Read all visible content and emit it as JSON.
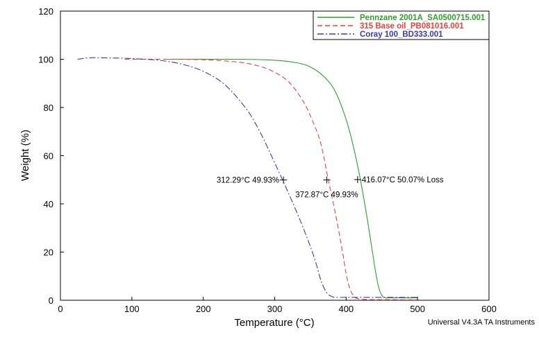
{
  "chart_data": {
    "type": "line",
    "xlabel": "Temperature (°C)",
    "ylabel": "Weight (%)",
    "xlim": [
      0,
      600
    ],
    "ylim": [
      0,
      120
    ],
    "x_ticks": [
      0,
      100,
      200,
      300,
      400,
      500,
      600
    ],
    "y_ticks": [
      0,
      20,
      40,
      60,
      80,
      100,
      120
    ],
    "grid": false,
    "legend_position": "top-right",
    "series": [
      {
        "name": "Pennzane 2001A_SA0500715.001",
        "color": "#2e9e2e",
        "dash": "solid",
        "x": [
          150,
          250,
          300,
          330,
          350,
          370,
          385,
          400,
          410,
          420,
          430,
          440,
          445,
          450,
          455,
          460,
          500
        ],
        "y": [
          100,
          100,
          99.6,
          98.6,
          96.8,
          92.5,
          86.5,
          75,
          64,
          50,
          33,
          14,
          6,
          2,
          1,
          1,
          1
        ]
      },
      {
        "name": "315 Base oil_PB081016.001",
        "color": "#e8403c",
        "dash": "dashed",
        "x": [
          90,
          150,
          200,
          250,
          280,
          300,
          320,
          340,
          355,
          365,
          375,
          385,
          395,
          400,
          405,
          410,
          415,
          430,
          500
        ],
        "y": [
          100,
          100,
          99.8,
          98.8,
          97,
          94.6,
          90.5,
          82.5,
          73,
          64.5,
          50,
          36,
          20,
          11,
          5,
          2,
          0.8,
          0.3,
          0.2
        ]
      },
      {
        "name": "Coray 100_BD333.001",
        "color": "#3a3aa8",
        "dash": "dashdot",
        "x": [
          24,
          40,
          60,
          100,
          140,
          170,
          200,
          230,
          260,
          280,
          300,
          320,
          340,
          355,
          365,
          372,
          378,
          385,
          400,
          500
        ],
        "y": [
          100,
          100.6,
          100.6,
          100.3,
          99.5,
          98,
          95,
          89.5,
          79.5,
          69.5,
          57,
          44,
          30,
          18,
          8,
          3.5,
          1.8,
          1.2,
          1.2,
          1.2
        ]
      }
    ],
    "annotations": [
      {
        "text": "312.29°C 49.93%",
        "x": 312.29,
        "y": 49.93,
        "side": "left"
      },
      {
        "text": "372.87°C 49.93%",
        "x": 372.87,
        "y": 49.93,
        "side": "below"
      },
      {
        "text": "416.07°C 50.07% Loss",
        "x": 416.07,
        "y": 50.07,
        "side": "right"
      }
    ]
  },
  "footer_text": "Universal V4.3A TA Instruments"
}
